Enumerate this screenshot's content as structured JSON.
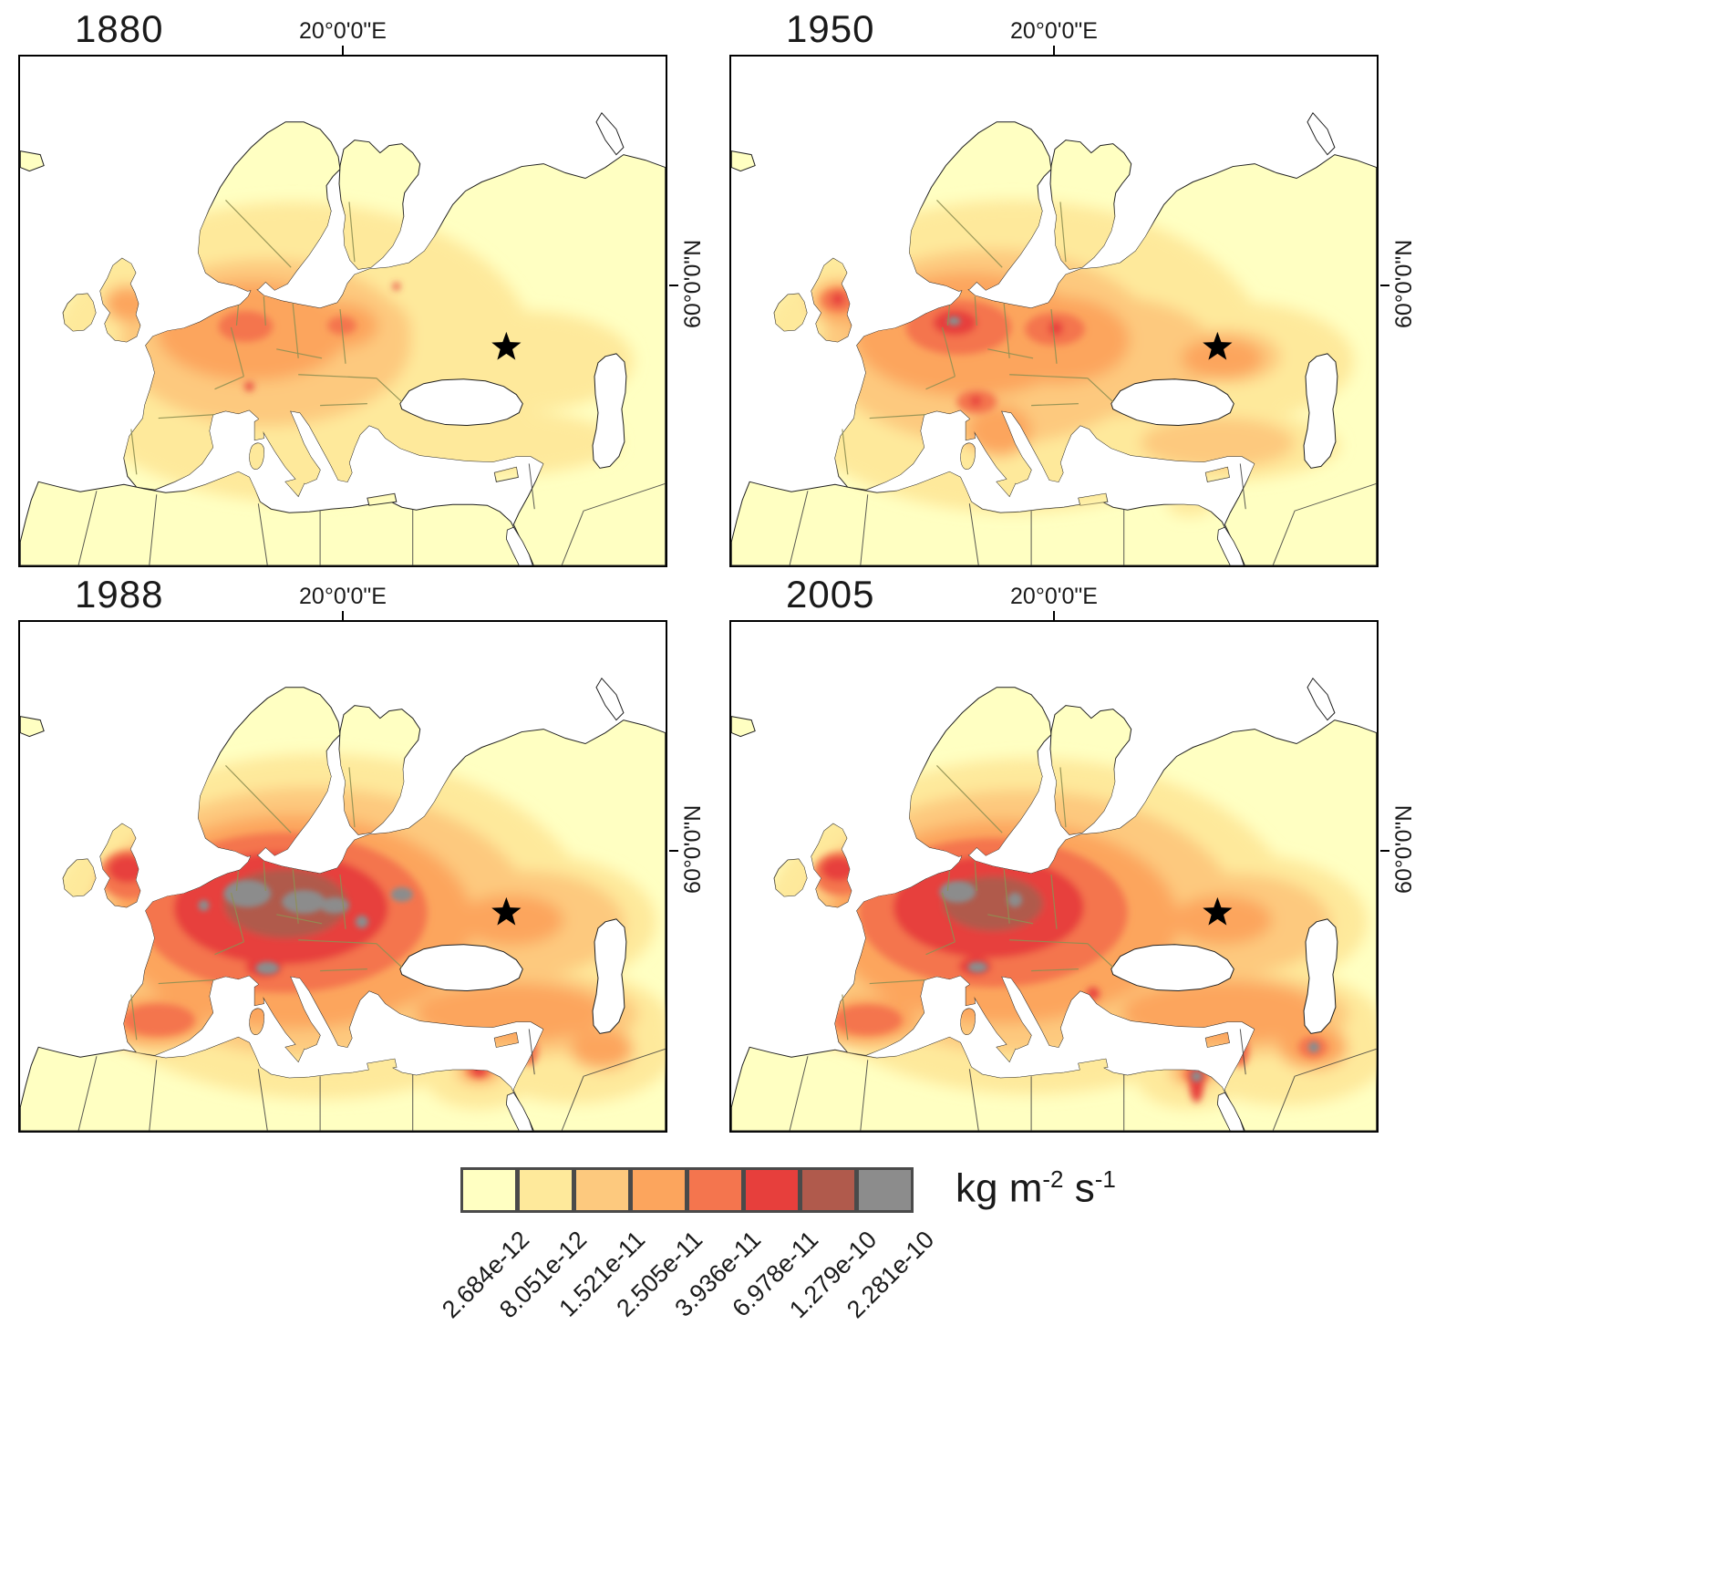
{
  "panels": [
    {
      "year": "1880",
      "top_axis_label": "20°0'0\"E",
      "right_axis_label": "60°0'0\"N"
    },
    {
      "year": "1950",
      "top_axis_label": "20°0'0\"E",
      "right_axis_label": "60°0'0\"N"
    },
    {
      "year": "1988",
      "top_axis_label": "20°0'0\"E",
      "right_axis_label": "60°0'0\"N"
    },
    {
      "year": "2005",
      "top_axis_label": "20°0'0\"E",
      "right_axis_label": "60°0'0\"N"
    }
  ],
  "legend": {
    "entries": [
      {
        "value": "2.684e-12",
        "color": "#FFFFC2"
      },
      {
        "value": "8.051e-12",
        "color": "#FEE99B"
      },
      {
        "value": "1.521e-11",
        "color": "#FDC97E"
      },
      {
        "value": "2.505e-11",
        "color": "#FCA55D"
      },
      {
        "value": "3.936e-11",
        "color": "#F4754E"
      },
      {
        "value": "6.978e-11",
        "color": "#E73F3C"
      },
      {
        "value": "1.279e-10",
        "color": "#B05A4C"
      },
      {
        "value": "2.281e-10",
        "color": "#8C8C8C"
      }
    ],
    "unit": {
      "base1": "kg m",
      "sup1": "-2",
      "base2": " s",
      "sup2": "-1"
    }
  },
  "chart_data": {
    "type": "heatmap",
    "title": "",
    "panels": [
      "1880",
      "1950",
      "1988",
      "2005"
    ],
    "region": "Europe, North Africa and Middle East emission flux maps",
    "axis_labels": {
      "longitude": "20°0'0\"E",
      "latitude": "60°0'0\"N"
    },
    "legend_breaks": [
      "2.684e-12",
      "8.051e-12",
      "1.521e-11",
      "2.505e-11",
      "3.936e-11",
      "6.978e-11",
      "1.279e-10",
      "2.281e-10"
    ],
    "legend_colors": [
      "#FFFFC2",
      "#FEE99B",
      "#FDC97E",
      "#FCA55D",
      "#F4754E",
      "#E73F3C",
      "#B05A4C",
      "#8C8C8C"
    ],
    "units": "kg m-2 s-1",
    "marker": "black star at ~40E, 43N (eastern Black Sea / Caucasus) in all panels",
    "legend_position": "bottom center"
  }
}
